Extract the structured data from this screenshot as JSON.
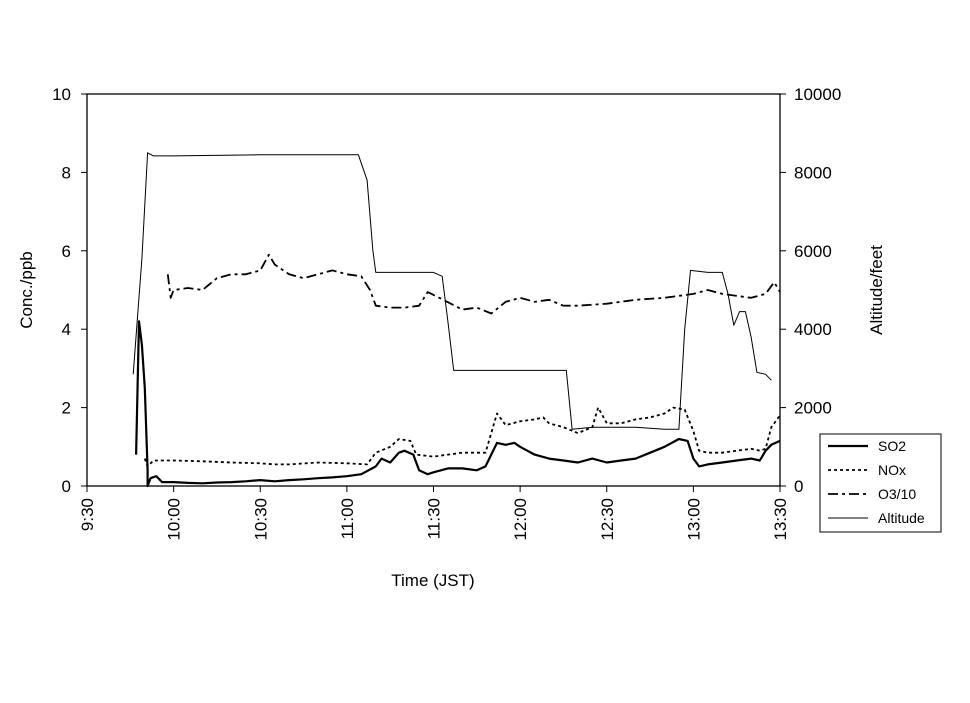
{
  "chart_data": {
    "type": "line",
    "title": "",
    "xlabel": "Time (JST)",
    "ylabel_left": "Conc./ppb",
    "ylabel_right": "Altitude/feet",
    "x_ticks": [
      "9:30",
      "10:00",
      "10:30",
      "11:00",
      "11:30",
      "12:00",
      "12:30",
      "13:00",
      "13:30"
    ],
    "x_range": [
      "9:30",
      "13:30"
    ],
    "y_left_ticks": [
      "0",
      "2",
      "4",
      "6",
      "8",
      "10"
    ],
    "y_left_range": [
      0,
      10
    ],
    "y_right_ticks": [
      "0",
      "2000",
      "4000",
      "6000",
      "8000",
      "10000"
    ],
    "y_right_range": [
      0,
      10000
    ],
    "grid": false,
    "legend_position": "right",
    "series": [
      {
        "name": "SO2",
        "axis": "left",
        "style": "solid-thick",
        "points": [
          [
            "9:47",
            0.8
          ],
          [
            "9:48",
            4.2
          ],
          [
            "9:49",
            3.6
          ],
          [
            "9:50",
            2.5
          ],
          [
            "9:51",
            0.4
          ],
          [
            "9:51",
            0.0
          ],
          [
            "9:52",
            0.2
          ],
          [
            "9:54",
            0.25
          ],
          [
            "9:56",
            0.1
          ],
          [
            "10:00",
            0.1
          ],
          [
            "10:05",
            0.08
          ],
          [
            "10:10",
            0.07
          ],
          [
            "10:15",
            0.09
          ],
          [
            "10:20",
            0.1
          ],
          [
            "10:25",
            0.12
          ],
          [
            "10:30",
            0.15
          ],
          [
            "10:35",
            0.12
          ],
          [
            "10:40",
            0.15
          ],
          [
            "10:45",
            0.17
          ],
          [
            "10:50",
            0.2
          ],
          [
            "10:55",
            0.22
          ],
          [
            "11:00",
            0.25
          ],
          [
            "11:05",
            0.3
          ],
          [
            "11:10",
            0.5
          ],
          [
            "11:12",
            0.7
          ],
          [
            "11:15",
            0.6
          ],
          [
            "11:18",
            0.85
          ],
          [
            "11:20",
            0.9
          ],
          [
            "11:23",
            0.8
          ],
          [
            "11:25",
            0.4
          ],
          [
            "11:28",
            0.3
          ],
          [
            "11:30",
            0.35
          ],
          [
            "11:35",
            0.45
          ],
          [
            "11:40",
            0.45
          ],
          [
            "11:45",
            0.4
          ],
          [
            "11:48",
            0.5
          ],
          [
            "11:52",
            1.1
          ],
          [
            "11:55",
            1.05
          ],
          [
            "11:58",
            1.1
          ],
          [
            "12:00",
            1.0
          ],
          [
            "12:05",
            0.8
          ],
          [
            "12:10",
            0.7
          ],
          [
            "12:15",
            0.65
          ],
          [
            "12:20",
            0.6
          ],
          [
            "12:25",
            0.7
          ],
          [
            "12:30",
            0.6
          ],
          [
            "12:35",
            0.65
          ],
          [
            "12:40",
            0.7
          ],
          [
            "12:45",
            0.85
          ],
          [
            "12:50",
            1.0
          ],
          [
            "12:55",
            1.2
          ],
          [
            "12:58",
            1.15
          ],
          [
            "13:00",
            0.7
          ],
          [
            "13:02",
            0.5
          ],
          [
            "13:05",
            0.55
          ],
          [
            "13:10",
            0.6
          ],
          [
            "13:15",
            0.65
          ],
          [
            "13:20",
            0.7
          ],
          [
            "13:23",
            0.65
          ],
          [
            "13:25",
            0.9
          ],
          [
            "13:27",
            1.05
          ],
          [
            "13:30",
            1.15
          ]
        ]
      },
      {
        "name": "NOx",
        "axis": "left",
        "style": "dotted",
        "points": [
          [
            "9:50",
            0.7
          ],
          [
            "9:51",
            0.5
          ],
          [
            "9:53",
            0.65
          ],
          [
            "10:00",
            0.65
          ],
          [
            "10:10",
            0.63
          ],
          [
            "10:20",
            0.6
          ],
          [
            "10:30",
            0.58
          ],
          [
            "10:35",
            0.55
          ],
          [
            "10:40",
            0.55
          ],
          [
            "10:50",
            0.6
          ],
          [
            "11:00",
            0.58
          ],
          [
            "11:07",
            0.55
          ],
          [
            "11:10",
            0.85
          ],
          [
            "11:15",
            1.0
          ],
          [
            "11:18",
            1.2
          ],
          [
            "11:22",
            1.15
          ],
          [
            "11:24",
            0.8
          ],
          [
            "11:30",
            0.75
          ],
          [
            "11:40",
            0.85
          ],
          [
            "11:48",
            0.85
          ],
          [
            "11:52",
            1.85
          ],
          [
            "11:55",
            1.55
          ],
          [
            "12:00",
            1.65
          ],
          [
            "12:05",
            1.7
          ],
          [
            "12:08",
            1.75
          ],
          [
            "12:10",
            1.6
          ],
          [
            "12:15",
            1.5
          ],
          [
            "12:20",
            1.35
          ],
          [
            "12:25",
            1.5
          ],
          [
            "12:27",
            2.0
          ],
          [
            "12:30",
            1.6
          ],
          [
            "12:35",
            1.6
          ],
          [
            "12:40",
            1.7
          ],
          [
            "12:45",
            1.75
          ],
          [
            "12:50",
            1.85
          ],
          [
            "12:53",
            2.0
          ],
          [
            "12:57",
            1.95
          ],
          [
            "13:00",
            1.4
          ],
          [
            "13:02",
            0.9
          ],
          [
            "13:05",
            0.85
          ],
          [
            "13:10",
            0.85
          ],
          [
            "13:15",
            0.9
          ],
          [
            "13:20",
            0.95
          ],
          [
            "13:23",
            0.9
          ],
          [
            "13:25",
            0.95
          ],
          [
            "13:27",
            1.5
          ],
          [
            "13:30",
            1.8
          ]
        ]
      },
      {
        "name": "O3/10",
        "axis": "left",
        "style": "dash-dot",
        "points": [
          [
            "9:58",
            5.4
          ],
          [
            "9:59",
            4.8
          ],
          [
            "10:00",
            5.0
          ],
          [
            "10:05",
            5.05
          ],
          [
            "10:10",
            5.0
          ],
          [
            "10:15",
            5.3
          ],
          [
            "10:20",
            5.4
          ],
          [
            "10:25",
            5.4
          ],
          [
            "10:30",
            5.5
          ],
          [
            "10:33",
            5.9
          ],
          [
            "10:35",
            5.65
          ],
          [
            "10:38",
            5.5
          ],
          [
            "10:40",
            5.4
          ],
          [
            "10:45",
            5.3
          ],
          [
            "10:50",
            5.4
          ],
          [
            "10:55",
            5.5
          ],
          [
            "11:00",
            5.4
          ],
          [
            "11:05",
            5.35
          ],
          [
            "11:08",
            5.0
          ],
          [
            "11:10",
            4.6
          ],
          [
            "11:15",
            4.55
          ],
          [
            "11:20",
            4.55
          ],
          [
            "11:25",
            4.6
          ],
          [
            "11:28",
            4.95
          ],
          [
            "11:32",
            4.8
          ],
          [
            "11:40",
            4.5
          ],
          [
            "11:45",
            4.55
          ],
          [
            "11:50",
            4.4
          ],
          [
            "11:55",
            4.7
          ],
          [
            "12:00",
            4.8
          ],
          [
            "12:05",
            4.7
          ],
          [
            "12:10",
            4.75
          ],
          [
            "12:15",
            4.6
          ],
          [
            "12:20",
            4.6
          ],
          [
            "12:30",
            4.65
          ],
          [
            "12:40",
            4.75
          ],
          [
            "12:50",
            4.8
          ],
          [
            "13:00",
            4.9
          ],
          [
            "13:05",
            5.0
          ],
          [
            "13:10",
            4.9
          ],
          [
            "13:15",
            4.85
          ],
          [
            "13:20",
            4.8
          ],
          [
            "13:25",
            4.9
          ],
          [
            "13:28",
            5.2
          ],
          [
            "13:30",
            4.95
          ]
        ]
      },
      {
        "name": "Altitude",
        "axis": "right",
        "style": "solid-thin",
        "points": [
          [
            "9:46",
            2850
          ],
          [
            "9:49",
            5800
          ],
          [
            "9:51",
            8500
          ],
          [
            "9:53",
            8420
          ],
          [
            "10:00",
            8420
          ],
          [
            "10:30",
            8450
          ],
          [
            "11:00",
            8450
          ],
          [
            "11:04",
            8450
          ],
          [
            "11:07",
            7800
          ],
          [
            "11:09",
            6000
          ],
          [
            "11:10",
            5450
          ],
          [
            "11:20",
            5450
          ],
          [
            "11:30",
            5450
          ],
          [
            "11:33",
            5350
          ],
          [
            "11:35",
            4200
          ],
          [
            "11:37",
            2950
          ],
          [
            "11:45",
            2950
          ],
          [
            "12:00",
            2950
          ],
          [
            "12:10",
            2950
          ],
          [
            "12:16",
            2950
          ],
          [
            "12:18",
            1450
          ],
          [
            "12:25",
            1500
          ],
          [
            "12:40",
            1500
          ],
          [
            "12:50",
            1450
          ],
          [
            "12:55",
            1450
          ],
          [
            "12:57",
            4000
          ],
          [
            "12:59",
            5500
          ],
          [
            "13:05",
            5450
          ],
          [
            "13:10",
            5450
          ],
          [
            "13:12",
            4900
          ],
          [
            "13:14",
            4100
          ],
          [
            "13:16",
            4450
          ],
          [
            "13:18",
            4450
          ],
          [
            "13:20",
            3800
          ],
          [
            "13:22",
            2900
          ],
          [
            "13:25",
            2850
          ],
          [
            "13:27",
            2700
          ]
        ]
      }
    ]
  }
}
